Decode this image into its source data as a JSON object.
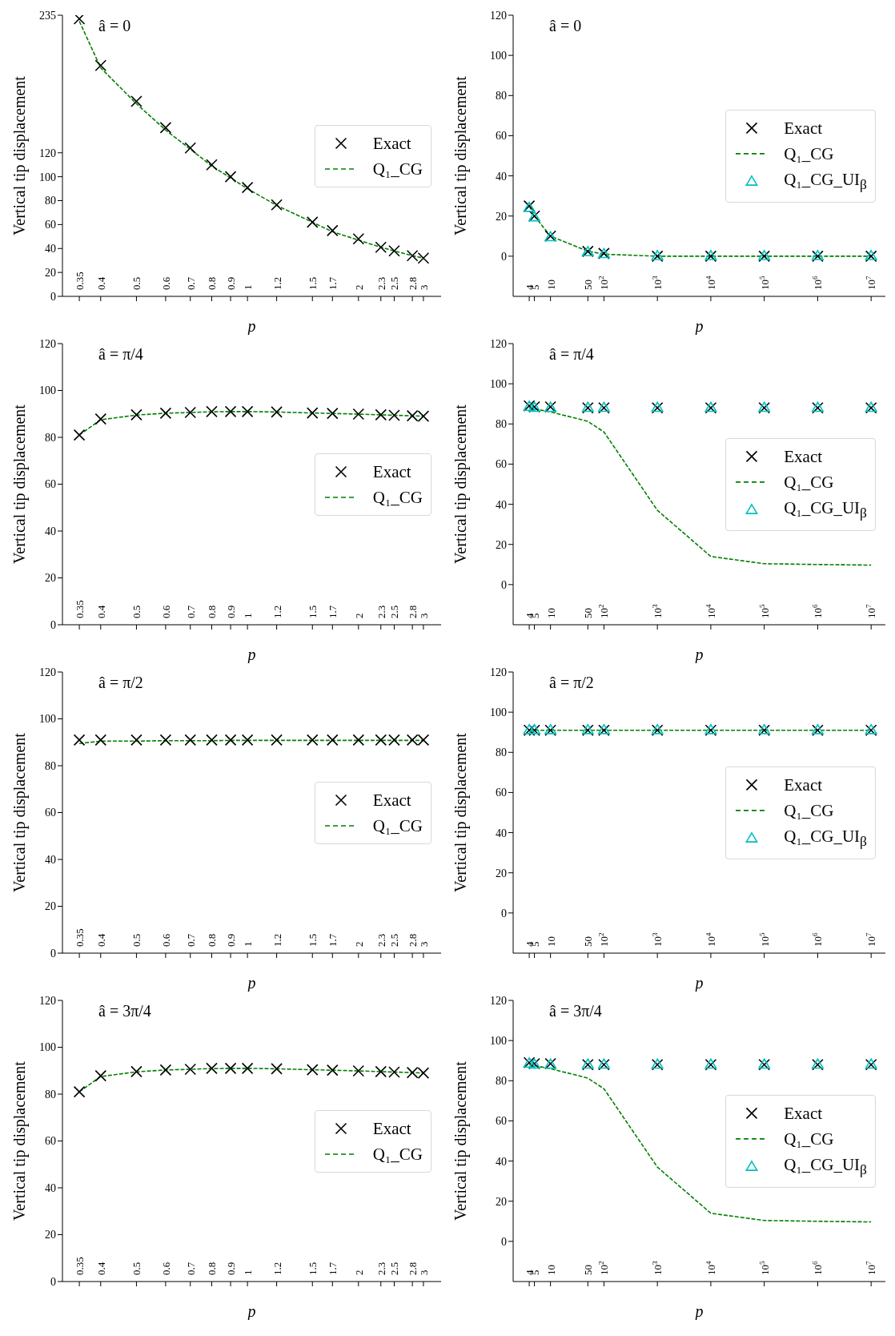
{
  "chart_data": [
    {
      "type": "line",
      "title": "â = 0",
      "xlabel": "p",
      "ylabel": "Vertical tip displacement",
      "log": "x",
      "legend": "right",
      "xlim": [
        0.315,
        3.35
      ],
      "xticks": [
        0.35,
        0.4,
        0.5,
        0.6,
        0.7,
        0.8,
        0.9,
        1,
        1.2,
        1.5,
        1.7,
        2,
        2.3,
        2.5,
        2.8,
        3
      ],
      "ylim": [
        0,
        235
      ],
      "yticks": [
        0,
        20,
        40,
        60,
        80,
        100,
        120,
        235
      ],
      "x": [
        0.35,
        0.4,
        0.5,
        0.6,
        0.7,
        0.8,
        0.9,
        1,
        1.2,
        1.5,
        1.7,
        2,
        2.3,
        2.5,
        2.8,
        3
      ],
      "series": [
        {
          "name": "Exact",
          "type": "scatter",
          "marker": "cross",
          "color": "#000000",
          "values": [
            232,
            193,
            163,
            141,
            124,
            110,
            100,
            91,
            76.5,
            62,
            55,
            48,
            41,
            38,
            34,
            32
          ]
        },
        {
          "name": "Q₁_CG",
          "type": "line",
          "marker": "none",
          "line_style": "dashed",
          "color": "#008000",
          "values": [
            230,
            191,
            161,
            139,
            123,
            109,
            99,
            90,
            76,
            62,
            54,
            47,
            41,
            38,
            34,
            32
          ]
        }
      ]
    },
    {
      "type": "line",
      "title": "â = 0",
      "xlabel": "p",
      "ylabel": "Vertical tip displacement",
      "log": "x",
      "legend": "right",
      "xlim": [
        2,
        18500000
      ],
      "xticks": [
        4,
        5,
        10,
        50,
        {
          "value": 100,
          "label": "10$^{2}$"
        },
        {
          "value": 1000,
          "label": "10$^{3}$"
        },
        {
          "value": 10000,
          "label": "10$^{4}$"
        },
        {
          "value": 100000,
          "label": "10$^{5}$"
        },
        {
          "value": 1000000,
          "label": "10$^{6}$"
        },
        {
          "value": 10000000,
          "label": "10$^{7}$"
        }
      ],
      "ylim": [
        -20,
        120
      ],
      "yticks": [
        0,
        20,
        40,
        60,
        80,
        100,
        120
      ],
      "x": [
        4,
        5,
        10,
        50,
        100,
        1000,
        10000,
        100000,
        1000000,
        10000000
      ],
      "series": [
        {
          "name": "Exact",
          "type": "scatter",
          "marker": "cross",
          "color": "#000000",
          "values": [
            25,
            20,
            10,
            2.4,
            1.4,
            0,
            0,
            0,
            0,
            0
          ]
        },
        {
          "name": "Q₁_CG",
          "type": "line",
          "marker": "none",
          "line_style": "dashed",
          "color": "#008000",
          "values": [
            25,
            20,
            10,
            2.5,
            1,
            0,
            0,
            0,
            0,
            0
          ]
        },
        {
          "name": "Q₁_CG_UI$_{β}$",
          "type": "scatter",
          "marker": "triangle",
          "color": "#00bfbf",
          "values": [
            24,
            19.3,
            9.4,
            2,
            1,
            0,
            0,
            0,
            0,
            0
          ]
        }
      ]
    },
    {
      "type": "line",
      "title": "â = π/4",
      "xlabel": "p",
      "ylabel": "Vertical tip displacement",
      "log": "x",
      "legend": "right",
      "xlim": [
        0.315,
        3.35
      ],
      "xticks": [
        0.35,
        0.4,
        0.5,
        0.6,
        0.7,
        0.8,
        0.9,
        1,
        1.2,
        1.5,
        1.7,
        2,
        2.3,
        2.5,
        2.8,
        3
      ],
      "ylim": [
        0,
        120
      ],
      "yticks": [
        0,
        20,
        40,
        60,
        80,
        100,
        120
      ],
      "x": [
        0.35,
        0.4,
        0.5,
        0.6,
        0.7,
        0.8,
        0.9,
        1,
        1.2,
        1.5,
        1.7,
        2,
        2.3,
        2.5,
        2.8,
        3
      ],
      "series": [
        {
          "name": "Exact",
          "type": "scatter",
          "marker": "cross",
          "color": "#000000",
          "values": [
            81,
            87.8,
            89.6,
            90.3,
            90.6,
            91,
            91,
            91,
            90.8,
            90.4,
            90.2,
            89.9,
            89.6,
            89.4,
            89.2,
            89
          ]
        },
        {
          "name": "Q₁_CG",
          "type": "line",
          "marker": "none",
          "line_style": "dashed",
          "color": "#008000",
          "values": [
            81,
            87.5,
            89.5,
            90.3,
            90.6,
            90.9,
            91,
            91,
            90.8,
            90.4,
            90.2,
            89.9,
            89.6,
            89.4,
            89.2,
            89
          ]
        }
      ]
    },
    {
      "type": "line",
      "title": "â = π/4",
      "xlabel": "p",
      "ylabel": "Vertical tip displacement",
      "log": "x",
      "legend": "right",
      "xlim": [
        2,
        18500000
      ],
      "xticks": [
        4,
        5,
        10,
        50,
        {
          "value": 100,
          "label": "10$^{2}$"
        },
        {
          "value": 1000,
          "label": "10$^{3}$"
        },
        {
          "value": 10000,
          "label": "10$^{4}$"
        },
        {
          "value": 100000,
          "label": "10$^{5}$"
        },
        {
          "value": 1000000,
          "label": "10$^{6}$"
        },
        {
          "value": 10000000,
          "label": "10$^{7}$"
        }
      ],
      "ylim": [
        -20,
        120
      ],
      "yticks": [
        0,
        20,
        40,
        60,
        80,
        100,
        120
      ],
      "x": [
        4,
        5,
        10,
        50,
        100,
        1000,
        10000,
        100000,
        1000000,
        10000000
      ],
      "series": [
        {
          "name": "Exact",
          "type": "scatter",
          "marker": "cross",
          "color": "#000000",
          "values": [
            89,
            88.5,
            88.5,
            88,
            88,
            88,
            88,
            88,
            88,
            88
          ]
        },
        {
          "name": "Q₁_CG",
          "type": "line",
          "marker": "none",
          "line_style": "dashed",
          "color": "#008000",
          "values": [
            88,
            87.5,
            86,
            81.3,
            76,
            37,
            14,
            10.4,
            10,
            9.7
          ]
        },
        {
          "name": "Q₁_CG_UI$_{β}$",
          "type": "scatter",
          "marker": "triangle",
          "color": "#00bfbf",
          "values": [
            88.5,
            88,
            88,
            88,
            88,
            88,
            88,
            88,
            88,
            88
          ]
        }
      ]
    },
    {
      "type": "line",
      "title": "â = π/2",
      "xlabel": "p",
      "ylabel": "Vertical tip displacement",
      "log": "x",
      "legend": "right",
      "xlim": [
        0.315,
        3.35
      ],
      "xticks": [
        0.35,
        0.4,
        0.5,
        0.6,
        0.7,
        0.8,
        0.9,
        1,
        1.2,
        1.5,
        1.7,
        2,
        2.3,
        2.5,
        2.8,
        3
      ],
      "ylim": [
        0,
        120
      ],
      "yticks": [
        0,
        20,
        40,
        60,
        80,
        100,
        120
      ],
      "x": [
        0.35,
        0.4,
        0.5,
        0.6,
        0.7,
        0.8,
        0.9,
        1,
        1.2,
        1.5,
        1.7,
        2,
        2.3,
        2.5,
        2.8,
        3
      ],
      "series": [
        {
          "name": "Exact",
          "type": "scatter",
          "marker": "cross",
          "color": "#000000",
          "values": [
            91,
            91,
            91,
            91,
            91,
            91,
            91,
            91,
            91,
            91,
            91,
            91,
            91,
            91,
            91,
            91
          ]
        },
        {
          "name": "Q₁_CG",
          "type": "line",
          "marker": "none",
          "line_style": "dashed",
          "color": "#008000",
          "values": [
            89.5,
            90.5,
            90.5,
            90.7,
            90.7,
            90.7,
            90.8,
            90.8,
            90.8,
            90.8,
            90.8,
            90.8,
            90.8,
            90.8,
            90.8,
            90.8
          ]
        }
      ]
    },
    {
      "type": "line",
      "title": "â = π/2",
      "xlabel": "p",
      "ylabel": "Vertical tip displacement",
      "log": "x",
      "legend": "right",
      "xlim": [
        2,
        18500000
      ],
      "xticks": [
        4,
        5,
        10,
        50,
        {
          "value": 100,
          "label": "10$^{2}$"
        },
        {
          "value": 1000,
          "label": "10$^{3}$"
        },
        {
          "value": 10000,
          "label": "10$^{4}$"
        },
        {
          "value": 100000,
          "label": "10$^{5}$"
        },
        {
          "value": 1000000,
          "label": "10$^{6}$"
        },
        {
          "value": 10000000,
          "label": "10$^{7}$"
        }
      ],
      "ylim": [
        -20,
        120
      ],
      "yticks": [
        0,
        20,
        40,
        60,
        80,
        100,
        120
      ],
      "x": [
        4,
        5,
        10,
        50,
        100,
        1000,
        10000,
        100000,
        1000000,
        10000000
      ],
      "series": [
        {
          "name": "Exact",
          "type": "scatter",
          "marker": "cross",
          "color": "#000000",
          "values": [
            91,
            91,
            91,
            91,
            91,
            91,
            91,
            91,
            91,
            91
          ]
        },
        {
          "name": "Q₁_CG",
          "type": "line",
          "marker": "none",
          "line_style": "dashed",
          "color": "#008000",
          "values": [
            91,
            91,
            91,
            91,
            91,
            91,
            91,
            91,
            91,
            91
          ]
        },
        {
          "name": "Q₁_CG_UI$_{β}$",
          "type": "scatter",
          "marker": "triangle",
          "color": "#00bfbf",
          "values": [
            91,
            91,
            91,
            91,
            91,
            91,
            91,
            91,
            91,
            91
          ]
        }
      ]
    },
    {
      "type": "line",
      "title": "â = 3π/4",
      "xlabel": "p",
      "ylabel": "Vertical tip displacement",
      "log": "x",
      "legend": "right",
      "xlim": [
        0.315,
        3.35
      ],
      "xticks": [
        0.35,
        0.4,
        0.5,
        0.6,
        0.7,
        0.8,
        0.9,
        1,
        1.2,
        1.5,
        1.7,
        2,
        2.3,
        2.5,
        2.8,
        3
      ],
      "ylim": [
        0,
        120
      ],
      "yticks": [
        0,
        20,
        40,
        60,
        80,
        100,
        120
      ],
      "x": [
        0.35,
        0.4,
        0.5,
        0.6,
        0.7,
        0.8,
        0.9,
        1,
        1.2,
        1.5,
        1.7,
        2,
        2.3,
        2.5,
        2.8,
        3
      ],
      "series": [
        {
          "name": "Exact",
          "type": "scatter",
          "marker": "cross",
          "color": "#000000",
          "values": [
            81,
            87.8,
            89.6,
            90.3,
            90.6,
            91,
            91,
            91,
            90.8,
            90.4,
            90.2,
            89.9,
            89.6,
            89.4,
            89.2,
            89
          ]
        },
        {
          "name": "Q₁_CG",
          "type": "line",
          "marker": "none",
          "line_style": "dashed",
          "color": "#008000",
          "values": [
            81,
            87.5,
            89.5,
            90.3,
            90.6,
            90.9,
            91,
            91,
            90.8,
            90.4,
            90.2,
            89.9,
            89.6,
            89.4,
            89.2,
            89
          ]
        }
      ]
    },
    {
      "type": "line",
      "title": "â = 3π/4",
      "xlabel": "p",
      "ylabel": "Vertical tip displacement",
      "log": "x",
      "legend": "right",
      "xlim": [
        2,
        18500000
      ],
      "xticks": [
        4,
        5,
        10,
        50,
        {
          "value": 100,
          "label": "10$^{2}$"
        },
        {
          "value": 1000,
          "label": "10$^{3}$"
        },
        {
          "value": 10000,
          "label": "10$^{4}$"
        },
        {
          "value": 100000,
          "label": "10$^{5}$"
        },
        {
          "value": 1000000,
          "label": "10$^{6}$"
        },
        {
          "value": 10000000,
          "label": "10$^{7}$"
        }
      ],
      "ylim": [
        -20,
        120
      ],
      "yticks": [
        0,
        20,
        40,
        60,
        80,
        100,
        120
      ],
      "x": [
        4,
        5,
        10,
        50,
        100,
        1000,
        10000,
        100000,
        1000000,
        10000000
      ],
      "series": [
        {
          "name": "Exact",
          "type": "scatter",
          "marker": "cross",
          "color": "#000000",
          "values": [
            89,
            88.5,
            88.5,
            88,
            88,
            88,
            88,
            88,
            88,
            88
          ]
        },
        {
          "name": "Q₁_CG",
          "type": "line",
          "marker": "none",
          "line_style": "dashed",
          "color": "#008000",
          "values": [
            88,
            87.5,
            86,
            81.3,
            76,
            37,
            14,
            10.4,
            10,
            9.7
          ]
        },
        {
          "name": "Q₁_CG_UI$_{β}$",
          "type": "scatter",
          "marker": "triangle",
          "color": "#00bfbf",
          "values": [
            88.5,
            88,
            88,
            88,
            88,
            88,
            88,
            88,
            88,
            88
          ]
        }
      ]
    }
  ]
}
